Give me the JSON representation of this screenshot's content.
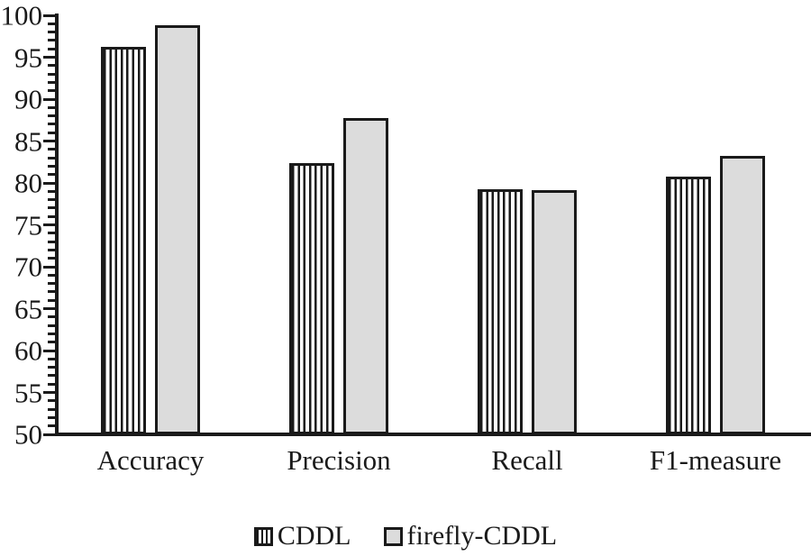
{
  "chart_data": {
    "type": "bar",
    "title": "",
    "xlabel": "",
    "ylabel": "",
    "categories": [
      "Accuracy",
      "Precision",
      "Recall",
      "F1-measure"
    ],
    "series": [
      {
        "name": "CDDL",
        "style": "striped",
        "values": [
          96.2,
          82.4,
          79.2,
          80.8
        ]
      },
      {
        "name": "firefly-CDDL",
        "style": "solid",
        "values": [
          98.8,
          87.7,
          79.1,
          83.2
        ]
      }
    ],
    "ylim": [
      50,
      100
    ],
    "y_major_tick_step": 5,
    "y_minor_tick_step": 1,
    "y_tick_labels": [
      "50",
      "55",
      "60",
      "65",
      "70",
      "75",
      "80",
      "85",
      "90",
      "95",
      "100"
    ],
    "grid": false,
    "legend_position": "bottom",
    "legend_entries": [
      "CDDL",
      "firefly-CDDL"
    ],
    "colors": {
      "axis": "#1a1a1a",
      "bar_outline": "#1a1a1a",
      "stripe_fill": "#1a1a1a",
      "solid_fill": "#dcdcdc",
      "background": "#ffffff"
    }
  }
}
